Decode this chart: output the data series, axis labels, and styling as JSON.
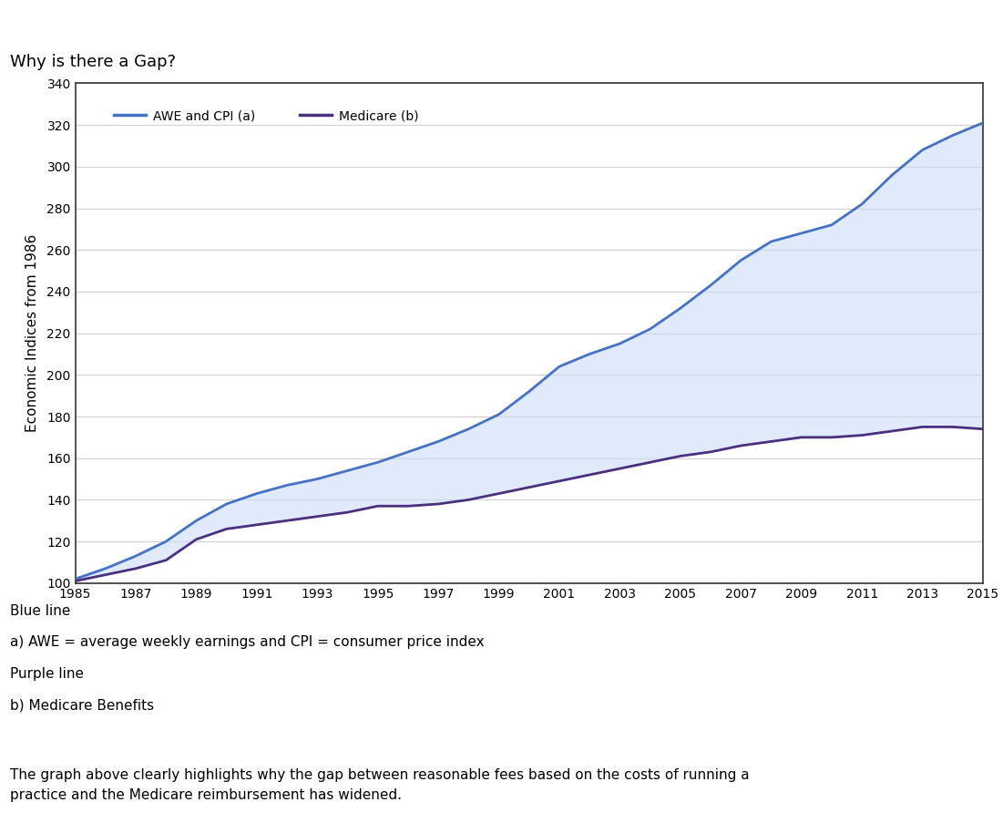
{
  "title": "Why is there a Gap?",
  "ylabel": "Economic Indices from 1986",
  "ylim": [
    100,
    340
  ],
  "yticks": [
    100,
    120,
    140,
    160,
    180,
    200,
    220,
    240,
    260,
    280,
    300,
    320,
    340
  ],
  "xtick_labels": [
    "1985",
    "1987",
    "1989",
    "1991",
    "1993",
    "1995",
    "1997",
    "1999",
    "2001",
    "2003",
    "2005",
    "2007",
    "2009",
    "2011",
    "2013",
    "2015"
  ],
  "years": [
    1985,
    1986,
    1987,
    1988,
    1989,
    1990,
    1991,
    1992,
    1993,
    1994,
    1995,
    1996,
    1997,
    1998,
    1999,
    2000,
    2001,
    2002,
    2003,
    2004,
    2005,
    2006,
    2007,
    2008,
    2009,
    2010,
    2011,
    2012,
    2013,
    2014,
    2015
  ],
  "awe_cpi": [
    102,
    107,
    113,
    120,
    130,
    138,
    143,
    147,
    150,
    154,
    158,
    163,
    168,
    174,
    181,
    192,
    204,
    210,
    215,
    222,
    232,
    243,
    255,
    264,
    268,
    272,
    282,
    296,
    308,
    315,
    321
  ],
  "medicare": [
    101,
    104,
    107,
    111,
    121,
    126,
    128,
    130,
    132,
    134,
    137,
    137,
    138,
    140,
    143,
    146,
    149,
    152,
    155,
    158,
    161,
    163,
    166,
    168,
    170,
    170,
    171,
    173,
    175,
    175,
    174
  ],
  "awe_color": "#4472c4",
  "medicare_color": "#4b3080",
  "fill_color": "#c9daf8",
  "fill_alpha": 0.55,
  "legend_awe": "AWE and CPI (a)",
  "legend_medicare": "Medicare (b)",
  "annotation_lines": [
    "Blue line",
    "a) AWE = average weekly earnings and CPI = consumer price index",
    "Purple line",
    "b) Medicare Benefits"
  ],
  "footer_text": "The graph above clearly highlights why the gap between reasonable fees based on the costs of running a\npractice and the Medicare reimbursement has widened.",
  "plot_bg": "#ffffff",
  "fig_bg": "#ffffff",
  "grid_color": "#d0d0d0",
  "spine_color": "#333333",
  "title_fontsize": 13,
  "axis_fontsize": 11,
  "tick_fontsize": 10,
  "annot_fontsize": 11,
  "footer_fontsize": 11
}
